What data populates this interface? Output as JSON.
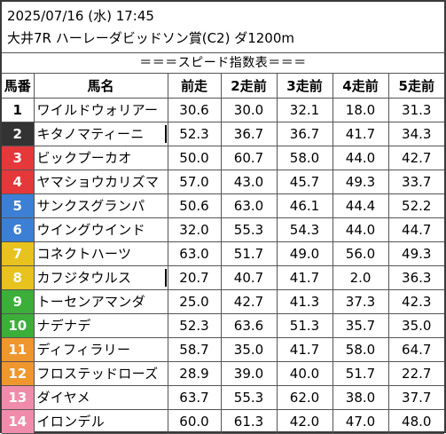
{
  "header": {
    "datetime": "2025/07/16 (水) 17:45",
    "race": "大井7R ハーレーダビッドソン賞(C2) ダ1200m",
    "table_title": "＝＝＝スピード指数表＝＝＝"
  },
  "columns": [
    "馬番",
    "馬名",
    "前走",
    "2走前",
    "3走前",
    "4走前",
    "5走前"
  ],
  "rows": [
    {
      "num": "1",
      "name": "ワイルドウォリアー",
      "bg": "#ffffff",
      "fg": "#000000",
      "marked": false,
      "v": [
        "30.6",
        "30.0",
        "32.1",
        "18.0",
        "31.3"
      ]
    },
    {
      "num": "2",
      "name": "キタノマティーニ",
      "bg": "#333333",
      "fg": "#ffffff",
      "marked": true,
      "v": [
        "52.3",
        "36.7",
        "36.7",
        "41.7",
        "34.3"
      ]
    },
    {
      "num": "3",
      "name": "ビックプーカオ",
      "bg": "#e5383b",
      "fg": "#ffffff",
      "marked": false,
      "v": [
        "50.0",
        "60.7",
        "58.0",
        "44.0",
        "42.7"
      ]
    },
    {
      "num": "4",
      "name": "ヤマショウカリズマ",
      "bg": "#e5383b",
      "fg": "#ffffff",
      "marked": false,
      "v": [
        "57.0",
        "43.0",
        "45.7",
        "49.3",
        "33.7"
      ]
    },
    {
      "num": "5",
      "name": "サンクスグランパ",
      "bg": "#3c7fd4",
      "fg": "#ffffff",
      "marked": false,
      "v": [
        "50.6",
        "63.0",
        "46.1",
        "44.4",
        "52.2"
      ]
    },
    {
      "num": "6",
      "name": "ウイングウインド",
      "bg": "#3c7fd4",
      "fg": "#ffffff",
      "marked": false,
      "v": [
        "32.0",
        "55.3",
        "54.3",
        "44.0",
        "44.7"
      ]
    },
    {
      "num": "7",
      "name": "コネクトハーツ",
      "bg": "#e8c21e",
      "fg": "#ffffff",
      "marked": false,
      "v": [
        "63.0",
        "51.7",
        "49.0",
        "56.0",
        "49.3"
      ]
    },
    {
      "num": "8",
      "name": "カフジタウルス",
      "bg": "#e8c21e",
      "fg": "#ffffff",
      "marked": true,
      "v": [
        "20.7",
        "40.7",
        "41.7",
        "2.0",
        "36.3"
      ]
    },
    {
      "num": "9",
      "name": "トーセンアマンダ",
      "bg": "#3cae3a",
      "fg": "#ffffff",
      "marked": false,
      "v": [
        "25.0",
        "42.7",
        "41.3",
        "37.3",
        "42.3"
      ]
    },
    {
      "num": "10",
      "name": "ナデナデ",
      "bg": "#3cae3a",
      "fg": "#ffffff",
      "marked": false,
      "v": [
        "52.3",
        "63.6",
        "51.3",
        "35.7",
        "35.0"
      ]
    },
    {
      "num": "11",
      "name": "ディフィラリー",
      "bg": "#f0962e",
      "fg": "#ffffff",
      "marked": false,
      "v": [
        "58.7",
        "35.0",
        "41.7",
        "58.0",
        "64.7"
      ]
    },
    {
      "num": "12",
      "name": "フロステッドローズ",
      "bg": "#f0962e",
      "fg": "#ffffff",
      "marked": false,
      "v": [
        "28.9",
        "39.0",
        "40.0",
        "51.7",
        "22.7"
      ]
    },
    {
      "num": "13",
      "name": "ダイヤメ",
      "bg": "#f08cab",
      "fg": "#ffffff",
      "marked": false,
      "v": [
        "63.7",
        "55.3",
        "62.0",
        "38.0",
        "37.7"
      ]
    },
    {
      "num": "14",
      "name": "イロンデル",
      "bg": "#f08cab",
      "fg": "#ffffff",
      "marked": false,
      "v": [
        "60.0",
        "61.3",
        "42.0",
        "47.0",
        "48.0"
      ]
    }
  ]
}
